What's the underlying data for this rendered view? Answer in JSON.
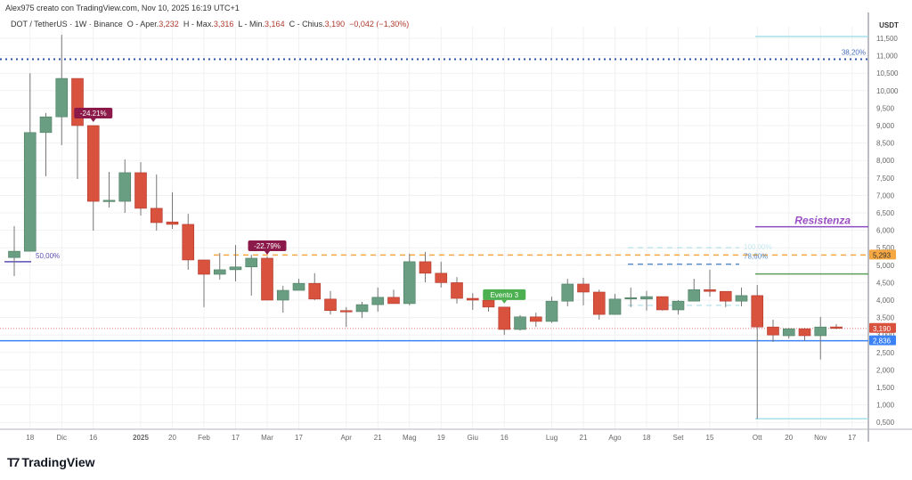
{
  "header": {
    "author_line": "Alex975 creato con TradingView.com, Nov 10, 2025 16:19 UTC+1"
  },
  "legend": {
    "symbol": "DOT / TetherUS · 1W · Binance",
    "open_label": "O - Aper.",
    "open": "3,232",
    "high_label": "H - Max.",
    "high": "3,316",
    "low_label": "L - Min.",
    "low": "3,164",
    "close_label": "C - Chius.",
    "close": "3,190",
    "change": "−0,042 (−1,30%)"
  },
  "logo": {
    "text": "TradingView"
  },
  "chart_data": {
    "type": "candlestick",
    "currency": "USDT",
    "ylim": [
      0.3,
      11.8
    ],
    "grid": true,
    "y_ticks": [
      "11,500",
      "11,000",
      "10,500",
      "10,000",
      "9,500",
      "9,000",
      "8,500",
      "8,000",
      "7,500",
      "7,000",
      "6,500",
      "6,000",
      "5,500",
      "5,000",
      "4,500",
      "4,000",
      "3,500",
      "3,000",
      "2,500",
      "2,000",
      "1,500",
      "1,000",
      "0,500"
    ],
    "x_ticks": [
      {
        "label": "18",
        "i": 1
      },
      {
        "label": "Dic",
        "i": 3
      },
      {
        "label": "16",
        "i": 5
      },
      {
        "label": "2025",
        "i": 8,
        "bold": true
      },
      {
        "label": "20",
        "i": 10
      },
      {
        "label": "Feb",
        "i": 12
      },
      {
        "label": "17",
        "i": 14
      },
      {
        "label": "Mar",
        "i": 16
      },
      {
        "label": "17",
        "i": 18
      },
      {
        "label": "Apr",
        "i": 21
      },
      {
        "label": "21",
        "i": 23
      },
      {
        "label": "Mag",
        "i": 25
      },
      {
        "label": "19",
        "i": 27
      },
      {
        "label": "Giu",
        "i": 29
      },
      {
        "label": "16",
        "i": 31
      },
      {
        "label": "Lug",
        "i": 34
      },
      {
        "label": "21",
        "i": 36
      },
      {
        "label": "Ago",
        "i": 38
      },
      {
        "label": "18",
        "i": 40
      },
      {
        "label": "Set",
        "i": 42
      },
      {
        "label": "15",
        "i": 44
      },
      {
        "label": "Ott",
        "i": 47
      },
      {
        "label": "20",
        "i": 49
      },
      {
        "label": "Nov",
        "i": 51
      },
      {
        "label": "17",
        "i": 53
      }
    ],
    "candles": [
      [
        5.22,
        6.12,
        4.69,
        5.4
      ],
      [
        5.4,
        10.5,
        5.4,
        8.8
      ],
      [
        8.8,
        9.36,
        7.55,
        9.25
      ],
      [
        9.25,
        11.6,
        8.44,
        10.35
      ],
      [
        10.35,
        10.35,
        7.47,
        9.0
      ],
      [
        9.0,
        9.0,
        5.99,
        6.83
      ],
      [
        6.83,
        7.67,
        6.65,
        6.86
      ],
      [
        6.83,
        8.03,
        6.5,
        7.65
      ],
      [
        7.65,
        7.95,
        6.42,
        6.63
      ],
      [
        6.63,
        7.6,
        5.99,
        6.22
      ],
      [
        6.24,
        7.09,
        6.04,
        6.17
      ],
      [
        6.17,
        6.47,
        4.87,
        5.15
      ],
      [
        5.15,
        5.15,
        3.8,
        4.74
      ],
      [
        4.74,
        5.35,
        4.59,
        4.87
      ],
      [
        4.87,
        5.58,
        4.54,
        4.95
      ],
      [
        4.95,
        5.3,
        4.13,
        5.2
      ],
      [
        5.2,
        5.25,
        4.0,
        4.0
      ],
      [
        4.0,
        4.41,
        3.64,
        4.28
      ],
      [
        4.28,
        4.61,
        4.28,
        4.48
      ],
      [
        4.48,
        4.77,
        4.0,
        4.03
      ],
      [
        4.03,
        4.26,
        3.59,
        3.7
      ],
      [
        3.7,
        3.8,
        3.23,
        3.67
      ],
      [
        3.67,
        3.95,
        3.49,
        3.87
      ],
      [
        3.87,
        4.36,
        3.67,
        4.08
      ],
      [
        4.08,
        4.3,
        3.9,
        3.9
      ],
      [
        3.9,
        5.33,
        3.85,
        5.1
      ],
      [
        5.1,
        5.38,
        4.51,
        4.77
      ],
      [
        4.77,
        5.1,
        4.36,
        4.5
      ],
      [
        4.5,
        4.66,
        3.9,
        4.05
      ],
      [
        4.05,
        4.2,
        3.72,
        4.0
      ],
      [
        4.0,
        4.0,
        3.67,
        3.8
      ],
      [
        3.8,
        3.8,
        3.0,
        3.16
      ],
      [
        3.16,
        3.57,
        3.13,
        3.52
      ],
      [
        3.52,
        3.64,
        3.23,
        3.39
      ],
      [
        3.39,
        4.1,
        3.35,
        3.97
      ],
      [
        3.97,
        4.61,
        3.82,
        4.46
      ],
      [
        4.46,
        4.64,
        3.85,
        4.23
      ],
      [
        4.23,
        4.3,
        3.44,
        3.59
      ],
      [
        3.59,
        4.18,
        3.59,
        4.03
      ],
      [
        4.05,
        4.36,
        3.8,
        4.07
      ],
      [
        4.03,
        4.26,
        3.7,
        4.1
      ],
      [
        4.1,
        4.1,
        3.7,
        3.72
      ],
      [
        3.72,
        4.0,
        3.59,
        3.97
      ],
      [
        3.97,
        4.61,
        3.97,
        4.3
      ],
      [
        4.3,
        4.87,
        4.1,
        4.25
      ],
      [
        4.25,
        4.25,
        3.8,
        3.97
      ],
      [
        3.97,
        4.36,
        3.82,
        4.13
      ],
      [
        4.13,
        4.43,
        0.6,
        3.23
      ],
      [
        3.23,
        3.44,
        2.8,
        3.0
      ],
      [
        2.98,
        3.2,
        2.9,
        3.18
      ],
      [
        3.18,
        3.2,
        2.83,
        2.98
      ],
      [
        2.98,
        3.52,
        2.3,
        3.23
      ],
      [
        3.232,
        3.316,
        3.164,
        3.19
      ]
    ],
    "candle_format": [
      "open",
      "high",
      "low",
      "close"
    ],
    "colors": {
      "up": "#6a9e82",
      "down": "#d9523e"
    },
    "levels": [
      {
        "price": 10.9,
        "style": "dotted",
        "color": "#2f4fa8",
        "label": "38,20%"
      },
      {
        "price": 11.55,
        "style": "solid",
        "color": "#a6e0ea"
      },
      {
        "price": 0.6,
        "style": "solid",
        "color": "#a6e0ea"
      },
      {
        "price": 6.1,
        "style": "solid",
        "color": "#8a4cc0",
        "label": "Resistenza"
      },
      {
        "price": 4.75,
        "style": "solid",
        "color": "#5aa05a"
      },
      {
        "price": 5.293,
        "style": "dashed",
        "color": "#f5a742",
        "tag": "5,293"
      },
      {
        "price": 2.836,
        "style": "solid",
        "color": "#3b82f6",
        "tag": "2,836"
      },
      {
        "price": 3.19,
        "style": "dotted",
        "color": "#f2a3a3",
        "tag": "3,190"
      },
      {
        "price": 5.1,
        "style": "solid",
        "color": "#5b4fb5",
        "label": "50,00%"
      },
      {
        "price": 5.5,
        "style": "dashed",
        "color": "#bfe6ee",
        "label": "100,00%"
      },
      {
        "price": 5.03,
        "style": "dashed",
        "color": "#5b8fc9",
        "label": "78,60%"
      },
      {
        "price": 3.85,
        "style": "dashed",
        "color": "#bfe6ee"
      }
    ],
    "annotations": [
      {
        "text": "-24.21%",
        "i": 5,
        "color": "#8b1a4a"
      },
      {
        "text": "-22.79%",
        "i": 16,
        "color": "#8b1a4a"
      },
      {
        "text": "Evento 3",
        "i": 31,
        "color": "#4caf50"
      }
    ]
  }
}
